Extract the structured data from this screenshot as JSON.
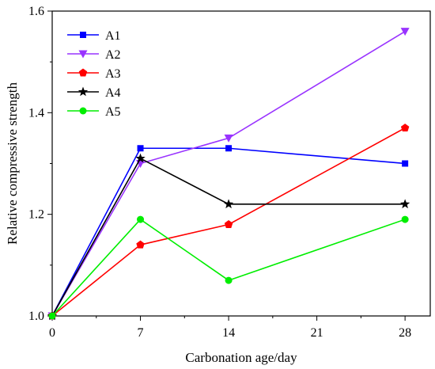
{
  "chart_data": {
    "type": "line",
    "title": "",
    "xlabel": "Carbonation age/day",
    "ylabel": "Relative compressive strength",
    "x": [
      0,
      7,
      14,
      28
    ],
    "xlim": [
      0,
      30
    ],
    "ylim": [
      1.0,
      1.6
    ],
    "xticks": [
      0,
      7,
      14,
      21,
      28
    ],
    "yticks": [
      1.0,
      1.2,
      1.4,
      1.6
    ],
    "xtick_labels": [
      "0",
      "7",
      "14",
      "21",
      "28"
    ],
    "ytick_labels": [
      "1.0",
      "1.2",
      "1.4",
      "1.6"
    ],
    "grid": false,
    "legend_position": "top-left",
    "series": [
      {
        "name": "A1",
        "color": "#0000ff",
        "marker": "square",
        "values": [
          1.0,
          1.33,
          1.33,
          1.3
        ]
      },
      {
        "name": "A2",
        "color": "#9933ff",
        "marker": "triangle-down",
        "values": [
          1.0,
          1.3,
          1.35,
          1.56
        ]
      },
      {
        "name": "A3",
        "color": "#ff0000",
        "marker": "pentagon",
        "values": [
          1.0,
          1.14,
          1.18,
          1.37
        ]
      },
      {
        "name": "A4",
        "color": "#000000",
        "marker": "star",
        "values": [
          1.0,
          1.31,
          1.22,
          1.22
        ]
      },
      {
        "name": "A5",
        "color": "#00ee00",
        "marker": "circle",
        "values": [
          1.0,
          1.19,
          1.07,
          1.19
        ]
      }
    ]
  }
}
